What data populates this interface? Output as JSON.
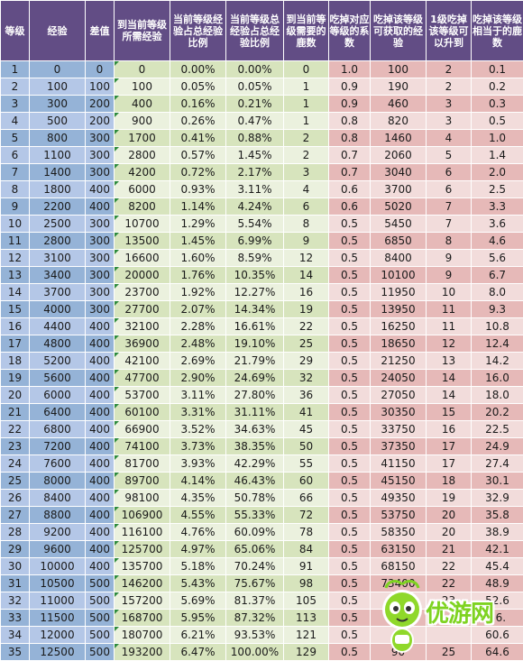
{
  "headers": [
    "等级",
    "经验",
    "差值",
    "到当前等级所需经验",
    "当前等级经验占总经验比例",
    "当前等级总经验占总经验比例",
    "到当前等级需要的鹿数",
    "吃掉对应等级的系数",
    "吃掉该等级可获取的经验",
    "1级吃掉该等级可以升到",
    "吃掉该等级相当于的鹿数"
  ],
  "rows": [
    [
      "1",
      "0",
      "0",
      "0",
      "0.00%",
      "0.00%",
      "0",
      "1.0",
      "100",
      "2",
      "0.1"
    ],
    [
      "2",
      "100",
      "100",
      "100",
      "0.05%",
      "0.05%",
      "1",
      "0.9",
      "190",
      "2",
      "0.2"
    ],
    [
      "3",
      "300",
      "200",
      "400",
      "0.16%",
      "0.21%",
      "1",
      "0.9",
      "460",
      "3",
      "0.3"
    ],
    [
      "4",
      "500",
      "200",
      "900",
      "0.26%",
      "0.47%",
      "1",
      "0.8",
      "820",
      "3",
      "0.5"
    ],
    [
      "5",
      "800",
      "300",
      "1700",
      "0.41%",
      "0.88%",
      "2",
      "0.8",
      "1460",
      "4",
      "1.0"
    ],
    [
      "6",
      "1100",
      "300",
      "2800",
      "0.57%",
      "1.45%",
      "2",
      "0.7",
      "2060",
      "5",
      "1.4"
    ],
    [
      "7",
      "1400",
      "300",
      "4200",
      "0.72%",
      "2.17%",
      "3",
      "0.7",
      "3040",
      "6",
      "2.0"
    ],
    [
      "8",
      "1800",
      "400",
      "6000",
      "0.93%",
      "3.11%",
      "4",
      "0.6",
      "3700",
      "6",
      "2.5"
    ],
    [
      "9",
      "2200",
      "400",
      "8200",
      "1.14%",
      "4.24%",
      "6",
      "0.6",
      "5020",
      "7",
      "3.3"
    ],
    [
      "10",
      "2500",
      "300",
      "10700",
      "1.29%",
      "5.54%",
      "8",
      "0.5",
      "5450",
      "7",
      "3.6"
    ],
    [
      "11",
      "2800",
      "300",
      "13500",
      "1.45%",
      "6.99%",
      "9",
      "0.5",
      "6850",
      "8",
      "4.6"
    ],
    [
      "12",
      "3100",
      "300",
      "16600",
      "1.60%",
      "8.59%",
      "12",
      "0.5",
      "8400",
      "9",
      "5.6"
    ],
    [
      "13",
      "3400",
      "300",
      "20000",
      "1.76%",
      "10.35%",
      "14",
      "0.5",
      "10100",
      "9",
      "6.7"
    ],
    [
      "14",
      "3700",
      "300",
      "23700",
      "1.92%",
      "12.27%",
      "16",
      "0.5",
      "11950",
      "10",
      "8.0"
    ],
    [
      "15",
      "4000",
      "300",
      "27700",
      "2.07%",
      "14.34%",
      "19",
      "0.5",
      "13950",
      "11",
      "9.3"
    ],
    [
      "16",
      "4400",
      "400",
      "32100",
      "2.28%",
      "16.61%",
      "22",
      "0.5",
      "16250",
      "11",
      "10.8"
    ],
    [
      "17",
      "4800",
      "400",
      "36900",
      "2.48%",
      "19.10%",
      "25",
      "0.5",
      "18650",
      "12",
      "12.4"
    ],
    [
      "18",
      "5200",
      "400",
      "42100",
      "2.69%",
      "21.79%",
      "29",
      "0.5",
      "21250",
      "13",
      "14.2"
    ],
    [
      "19",
      "5600",
      "400",
      "47700",
      "2.90%",
      "24.69%",
      "32",
      "0.5",
      "24050",
      "14",
      "16.0"
    ],
    [
      "20",
      "6000",
      "400",
      "53700",
      "3.11%",
      "27.80%",
      "36",
      "0.5",
      "27050",
      "14",
      "18.0"
    ],
    [
      "21",
      "6400",
      "400",
      "60100",
      "3.31%",
      "31.11%",
      "41",
      "0.5",
      "30350",
      "15",
      "20.2"
    ],
    [
      "22",
      "6800",
      "400",
      "66900",
      "3.52%",
      "34.63%",
      "45",
      "0.5",
      "33750",
      "16",
      "22.5"
    ],
    [
      "23",
      "7200",
      "400",
      "74100",
      "3.73%",
      "38.35%",
      "50",
      "0.5",
      "37350",
      "17",
      "24.9"
    ],
    [
      "24",
      "7600",
      "400",
      "81700",
      "3.93%",
      "42.29%",
      "55",
      "0.5",
      "41150",
      "17",
      "27.4"
    ],
    [
      "25",
      "8000",
      "400",
      "89700",
      "4.14%",
      "46.43%",
      "60",
      "0.5",
      "45150",
      "18",
      "30.1"
    ],
    [
      "26",
      "8400",
      "400",
      "98100",
      "4.35%",
      "50.78%",
      "66",
      "0.5",
      "49350",
      "19",
      "32.9"
    ],
    [
      "27",
      "8800",
      "400",
      "106900",
      "4.55%",
      "55.33%",
      "72",
      "0.5",
      "53750",
      "20",
      "35.8"
    ],
    [
      "28",
      "9200",
      "400",
      "116100",
      "4.76%",
      "60.09%",
      "78",
      "0.5",
      "58350",
      "20",
      "38.9"
    ],
    [
      "29",
      "9600",
      "400",
      "125700",
      "4.97%",
      "65.06%",
      "84",
      "0.5",
      "63150",
      "21",
      "42.1"
    ],
    [
      "30",
      "10000",
      "400",
      "135700",
      "5.18%",
      "70.24%",
      "91",
      "0.5",
      "68150",
      "22",
      "45.4"
    ],
    [
      "31",
      "10500",
      "500",
      "146200",
      "5.43%",
      "75.67%",
      "98",
      "0.5",
      "73400",
      "22",
      "48.9"
    ],
    [
      "32",
      "11000",
      "500",
      "157200",
      "5.69%",
      "81.37%",
      "105",
      "0.5",
      "78",
      "23",
      "52.6"
    ],
    [
      "33",
      "11500",
      "500",
      "168700",
      "5.95%",
      "87.32%",
      "113",
      "0.5",
      "",
      "",
      "56."
    ],
    [
      "34",
      "12000",
      "500",
      "180700",
      "6.21%",
      "93.53%",
      "121",
      "0.5",
      "",
      "",
      "60.6"
    ],
    [
      "35",
      "12500",
      "500",
      "193200",
      "6.47%",
      "100.00%",
      "129",
      "0.5",
      "90",
      "25",
      "64.6"
    ]
  ],
  "watermark": {
    "text": "优游网"
  },
  "colors": {
    "header": "#624d85",
    "blue": "#95b3d7",
    "green": "#d7e4bd",
    "pink": "#e6b9b8",
    "blue_alt": "#b4c7e7",
    "green_alt": "#ebf1de",
    "pink_alt": "#f2dcdb",
    "white": "#ffffff",
    "brand_green": "#7ed321"
  }
}
